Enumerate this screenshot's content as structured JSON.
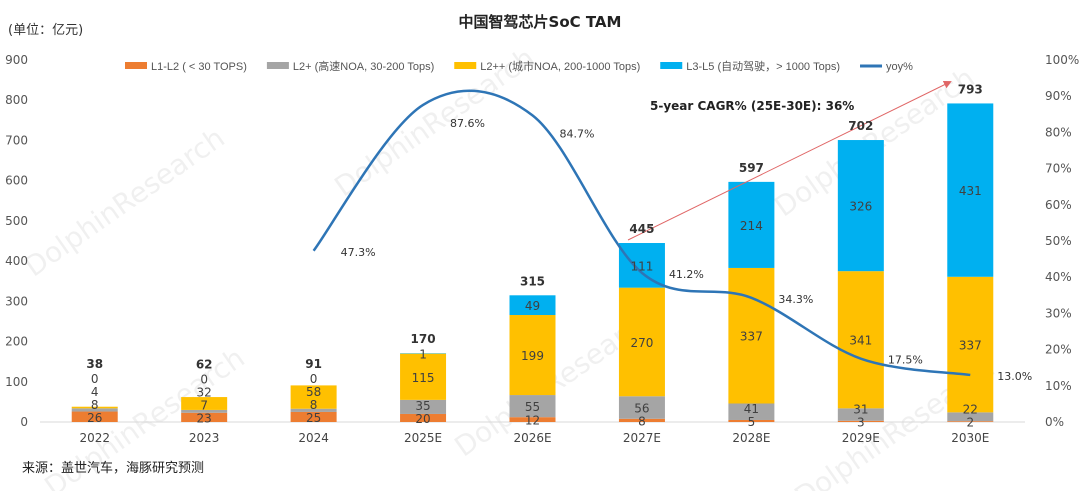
{
  "chart_data": {
    "type": "bar",
    "title": "中国智驾芯片SoC TAM",
    "unit_label": "(单位：亿元)",
    "source": "来源：盖世汽车，海豚研究预测",
    "watermark": "DolphinResearch",
    "categories": [
      "2022",
      "2023",
      "2024",
      "2025E",
      "2026E",
      "2027E",
      "2028E",
      "2029E",
      "2030E"
    ],
    "series": [
      {
        "name": "L1-L2   ( < 30 TOPS)",
        "color": "#ED7D31",
        "values": [
          26,
          23,
          25,
          20,
          12,
          8,
          5,
          3,
          2
        ]
      },
      {
        "name": "L2+ (高速NOA, 30-200 Tops)",
        "color": "#A5A5A5",
        "values": [
          8,
          7,
          8,
          35,
          55,
          56,
          41,
          31,
          22
        ]
      },
      {
        "name": "L2++ (城市NOA, 200-1000 Tops)",
        "color": "#FFC000",
        "values": [
          4,
          32,
          58,
          115,
          199,
          270,
          337,
          341,
          337
        ]
      },
      {
        "name": "L3-L5 (自动驾驶，> 1000 Tops)",
        "color": "#00B0F0",
        "values": [
          0,
          0,
          0,
          1,
          49,
          111,
          214,
          326,
          431
        ]
      }
    ],
    "totals": [
      38,
      62,
      91,
      170,
      315,
      445,
      597,
      702,
      793
    ],
    "line": {
      "name": "yoy%",
      "color": "#2E75B6",
      "values": [
        null,
        null,
        47.3,
        87.6,
        84.7,
        41.2,
        34.3,
        17.5,
        13.0
      ]
    },
    "ylim": [
      0,
      900
    ],
    "yticks": [
      0,
      100,
      200,
      300,
      400,
      500,
      600,
      700,
      800,
      900
    ],
    "y2lim": [
      0,
      100
    ],
    "y2ticks": [
      0,
      10,
      20,
      30,
      40,
      50,
      60,
      70,
      80,
      90,
      100
    ],
    "legend": "top",
    "grid": false,
    "annotation": {
      "text": "5-year CAGR% (25E-30E): 36%",
      "arrow_color": "#E06666"
    }
  }
}
